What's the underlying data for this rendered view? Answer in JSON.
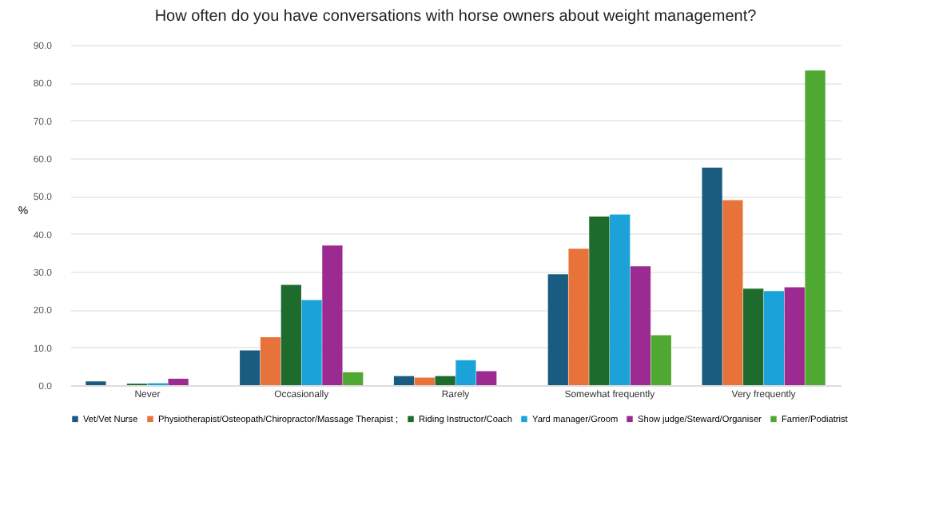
{
  "chart_data": {
    "type": "bar",
    "title": "How often do you have conversations with horse owners about weight management?",
    "ylabel": "%",
    "categories": [
      "Never",
      "Occasionally",
      "Rarely",
      "Somewhat frequently",
      "Very frequently"
    ],
    "series": [
      {
        "name": "Vet/Vet Nurse",
        "color": "#1a5c80",
        "values": [
          1.0,
          9.2,
          2.4,
          29.3,
          57.5
        ]
      },
      {
        "name": "Physiotherapist/Osteopath/Chiropractor/Massage Therapist ;",
        "color": "#e8733a",
        "values": [
          0,
          12.7,
          2.0,
          36.1,
          48.9
        ]
      },
      {
        "name": "Riding Instructor/Coach",
        "color": "#1e6b2e",
        "values": [
          0.4,
          26.5,
          2.4,
          44.6,
          25.5
        ]
      },
      {
        "name": "Yard manager/Groom",
        "color": "#1ba3d9",
        "values": [
          0.5,
          22.5,
          6.6,
          45.1,
          24.9
        ]
      },
      {
        "name": "Show judge/Steward/Organiser",
        "color": "#9b2a91",
        "values": [
          1.7,
          36.9,
          3.7,
          31.4,
          25.9
        ]
      },
      {
        "name": "Farrier/Podiatrist",
        "color": "#4ea832",
        "values": [
          0,
          3.4,
          0,
          13.2,
          83.2
        ]
      }
    ],
    "ylim": [
      0,
      90
    ],
    "yticks": [
      {
        "value": 0,
        "label": "0.0"
      },
      {
        "value": 10,
        "label": "10.0"
      },
      {
        "value": 20,
        "label": "20.0"
      },
      {
        "value": 30,
        "label": "30.0"
      },
      {
        "value": 40,
        "label": "40.0"
      },
      {
        "value": 50,
        "label": "50.0"
      },
      {
        "value": 60,
        "label": "60.0"
      },
      {
        "value": 70,
        "label": "70.0"
      },
      {
        "value": 80,
        "label": "80.0"
      },
      {
        "value": 90,
        "label": "90.0"
      }
    ],
    "grid": "y",
    "legend": "bottom"
  }
}
